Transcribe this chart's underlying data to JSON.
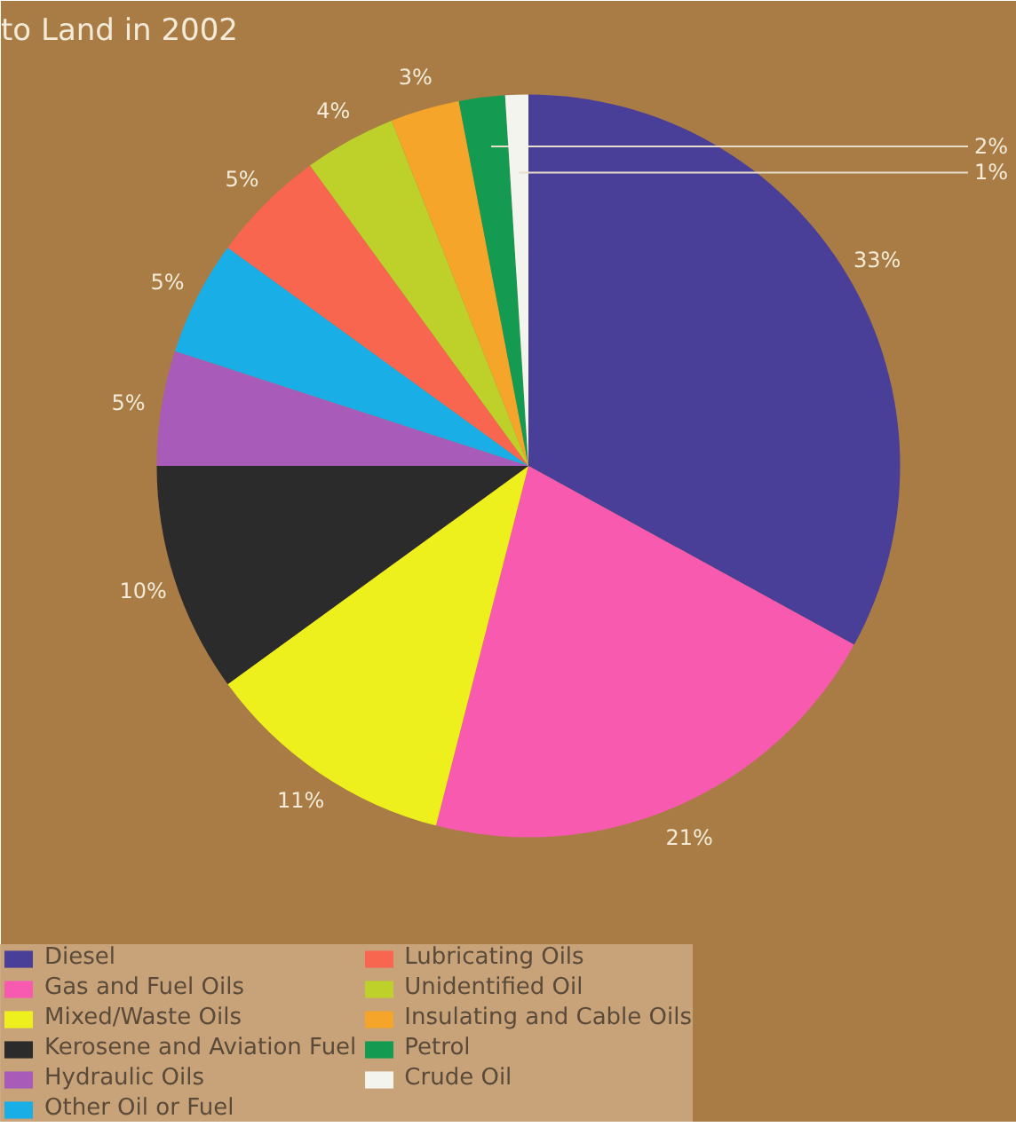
{
  "chart_data": {
    "type": "pie",
    "title": "to Land in 2002",
    "categories": [
      "Diesel",
      "Gas and Fuel Oils",
      "Mixed/Waste Oils",
      "Kerosene and Aviation Fuel",
      "Hydraulic Oils",
      "Other Oil or Fuel",
      "Lubricating Oils",
      "Unidentified Oil",
      "Insulating and Cable Oils",
      "Petrol",
      "Crude Oil"
    ],
    "values": [
      33,
      21,
      11,
      10,
      5,
      5,
      5,
      4,
      3,
      2,
      1
    ],
    "colors": [
      "#4a3f98",
      "#f75aaf",
      "#eef01e",
      "#2b2b2b",
      "#a85bb8",
      "#1aaee6",
      "#f8664f",
      "#bdd12a",
      "#f4a52a",
      "#159a52",
      "#f4f4ee"
    ],
    "value_labels": [
      "33%",
      "21%",
      "11%",
      "10%",
      "5%",
      "5%",
      "5%",
      "4%",
      "3%",
      "2%",
      "1%"
    ],
    "legend": "bottom"
  }
}
